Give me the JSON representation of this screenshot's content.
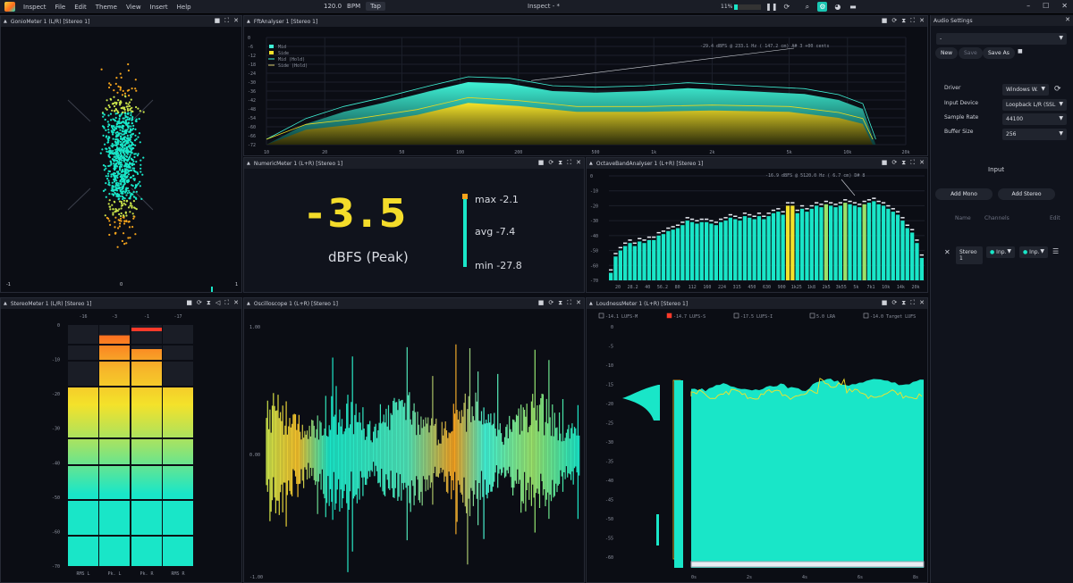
{
  "menubar": {
    "items": [
      "Inspect",
      "File",
      "Edit",
      "Theme",
      "View",
      "Insert",
      "Help"
    ],
    "bpm": "120.0",
    "bpm_label": "BPM",
    "tap": "Tap",
    "title": "Inspect - *",
    "cpu": "11%",
    "cpu_level": 0.11
  },
  "colors": {
    "accent": "#19e6c8",
    "yellow": "#f4dc2a",
    "orange": "#ff6a1c",
    "bg": "#10131c"
  },
  "goniometer": {
    "title": "GonioMeter 1 (L/R) [Stereo 1]",
    "axis": [
      "-1",
      "0",
      "1"
    ]
  },
  "fft": {
    "title": "FftAnalyser 1 [Stereo 1]",
    "legend": [
      "Mid",
      "Side",
      "Mid (Hold)",
      "Side (Hold)"
    ],
    "readout": "-29.4 dBFS  @  233.1 Hz  ( 147.2 cm)  A# 3 +00 cents",
    "yticks": [
      "0",
      "-6",
      "-12",
      "-18",
      "-24",
      "-30",
      "-36",
      "-42",
      "-48",
      "-54",
      "-60",
      "-66",
      "-72"
    ],
    "xticks": [
      "10",
      "20",
      "50",
      "100",
      "200",
      "500",
      "1k",
      "2k",
      "5k",
      "10k",
      "20k"
    ]
  },
  "numeric": {
    "title": "NumericMeter 1 (L+R) [Stereo 1]",
    "value": "-3.5",
    "unit": "dBFS (Peak)",
    "max": "max  -2.1",
    "avg": "avg  -7.4",
    "min": "min  -27.8"
  },
  "octave": {
    "title": "OctaveBandAnalyser 1 (L+R) [Stereo 1]",
    "readout": "-16.9 dBFS  @  5120.0 Hz  (   6.7 cm)   D# 8",
    "yticks": [
      "0",
      "-10",
      "-20",
      "-30",
      "-40",
      "-50",
      "-60",
      "-70"
    ],
    "xticks": [
      "20",
      "28.2",
      "40",
      "56.2",
      "80",
      "112",
      "160",
      "224",
      "315",
      "450",
      "630",
      "900",
      "1k25",
      "1k8",
      "2k5",
      "3k55",
      "5k",
      "7k1",
      "10k",
      "14k",
      "20k"
    ]
  },
  "stereo": {
    "title": "StereoMeter 1 (L/R) [Stereo 1]",
    "peaks": [
      "-16",
      "-3",
      "-1",
      "-17"
    ],
    "yticks": [
      "0",
      "-10",
      "-20",
      "-30",
      "-40",
      "-50",
      "-60",
      "-70"
    ],
    "channels": [
      "RMS L",
      "Pk. L",
      "Pk. R",
      "RMS R"
    ],
    "levels_db": [
      -18,
      -3,
      -7,
      -18
    ]
  },
  "scope": {
    "title": "Oscilloscope 1 (L+R) [Stereo 1]",
    "yticks": [
      "1.00",
      "0.00",
      "-1.00"
    ]
  },
  "loudness": {
    "title": "LoudnessMeter 1 (L+R) [Stereo 1]",
    "legend": [
      "-14.1 LUFS-M",
      "-14.7 LUFS-S",
      "-17.5 LUFS-I",
      "5.0 LRA",
      "-14.0 Target LUFS"
    ],
    "yticks": [
      "0",
      "-5",
      "-10",
      "-15",
      "-20",
      "-25",
      "-30",
      "-35",
      "-40",
      "-45",
      "-50",
      "-55",
      "-60"
    ],
    "xticks": [
      "0s",
      "2s",
      "4s",
      "6s",
      "8s"
    ]
  },
  "audio": {
    "title": "Audio Settings",
    "preset": "-",
    "new": "New",
    "save": "Save",
    "save_as": "Save As",
    "driver_label": "Driver",
    "driver": "Windows W.",
    "input_label": "Input Device",
    "input": "Loopback L/R (SSL",
    "rate_label": "Sample Rate",
    "rate": "44100",
    "buffer_label": "Buffer Size",
    "buffer": "256",
    "section": "Input",
    "add_mono": "Add Mono",
    "add_stereo": "Add Stereo",
    "col_name": "Name",
    "col_channels": "Channels",
    "col_edit": "Edit",
    "row_name": "Stereo 1",
    "row_in1": "Inp.",
    "row_in2": "Inp."
  }
}
